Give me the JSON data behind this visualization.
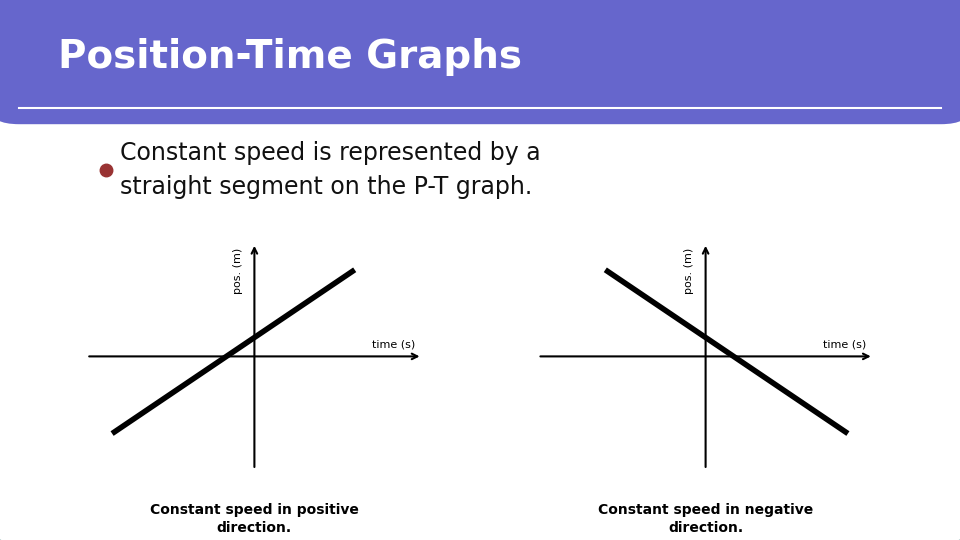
{
  "title": "Position-Time Graphs",
  "title_bg_color": "#6666cc",
  "title_text_color": "#ffffff",
  "slide_bg_color": "#ffffff",
  "slide_border_color": "#669999",
  "bullet_color": "#993333",
  "bullet_text": "Constant speed is represented by a\nstraight segment on the P-T graph.",
  "bullet_text_color": "#111111",
  "graph1_label_caption": "Constant speed in positive\ndirection.",
  "graph2_label_caption": "Constant speed in negative\ndirection.",
  "xlabel": "time (s)",
  "ylabel": "pos. (m)",
  "graph1_line": [
    [
      -1,
      -0.8
    ],
    [
      0.7,
      0.9
    ]
  ],
  "graph2_line": [
    [
      -0.7,
      0.9
    ],
    [
      1,
      -0.8
    ]
  ],
  "line_color": "#000000",
  "line_width": 4,
  "axis_color": "#000000",
  "font_family": "sans-serif"
}
